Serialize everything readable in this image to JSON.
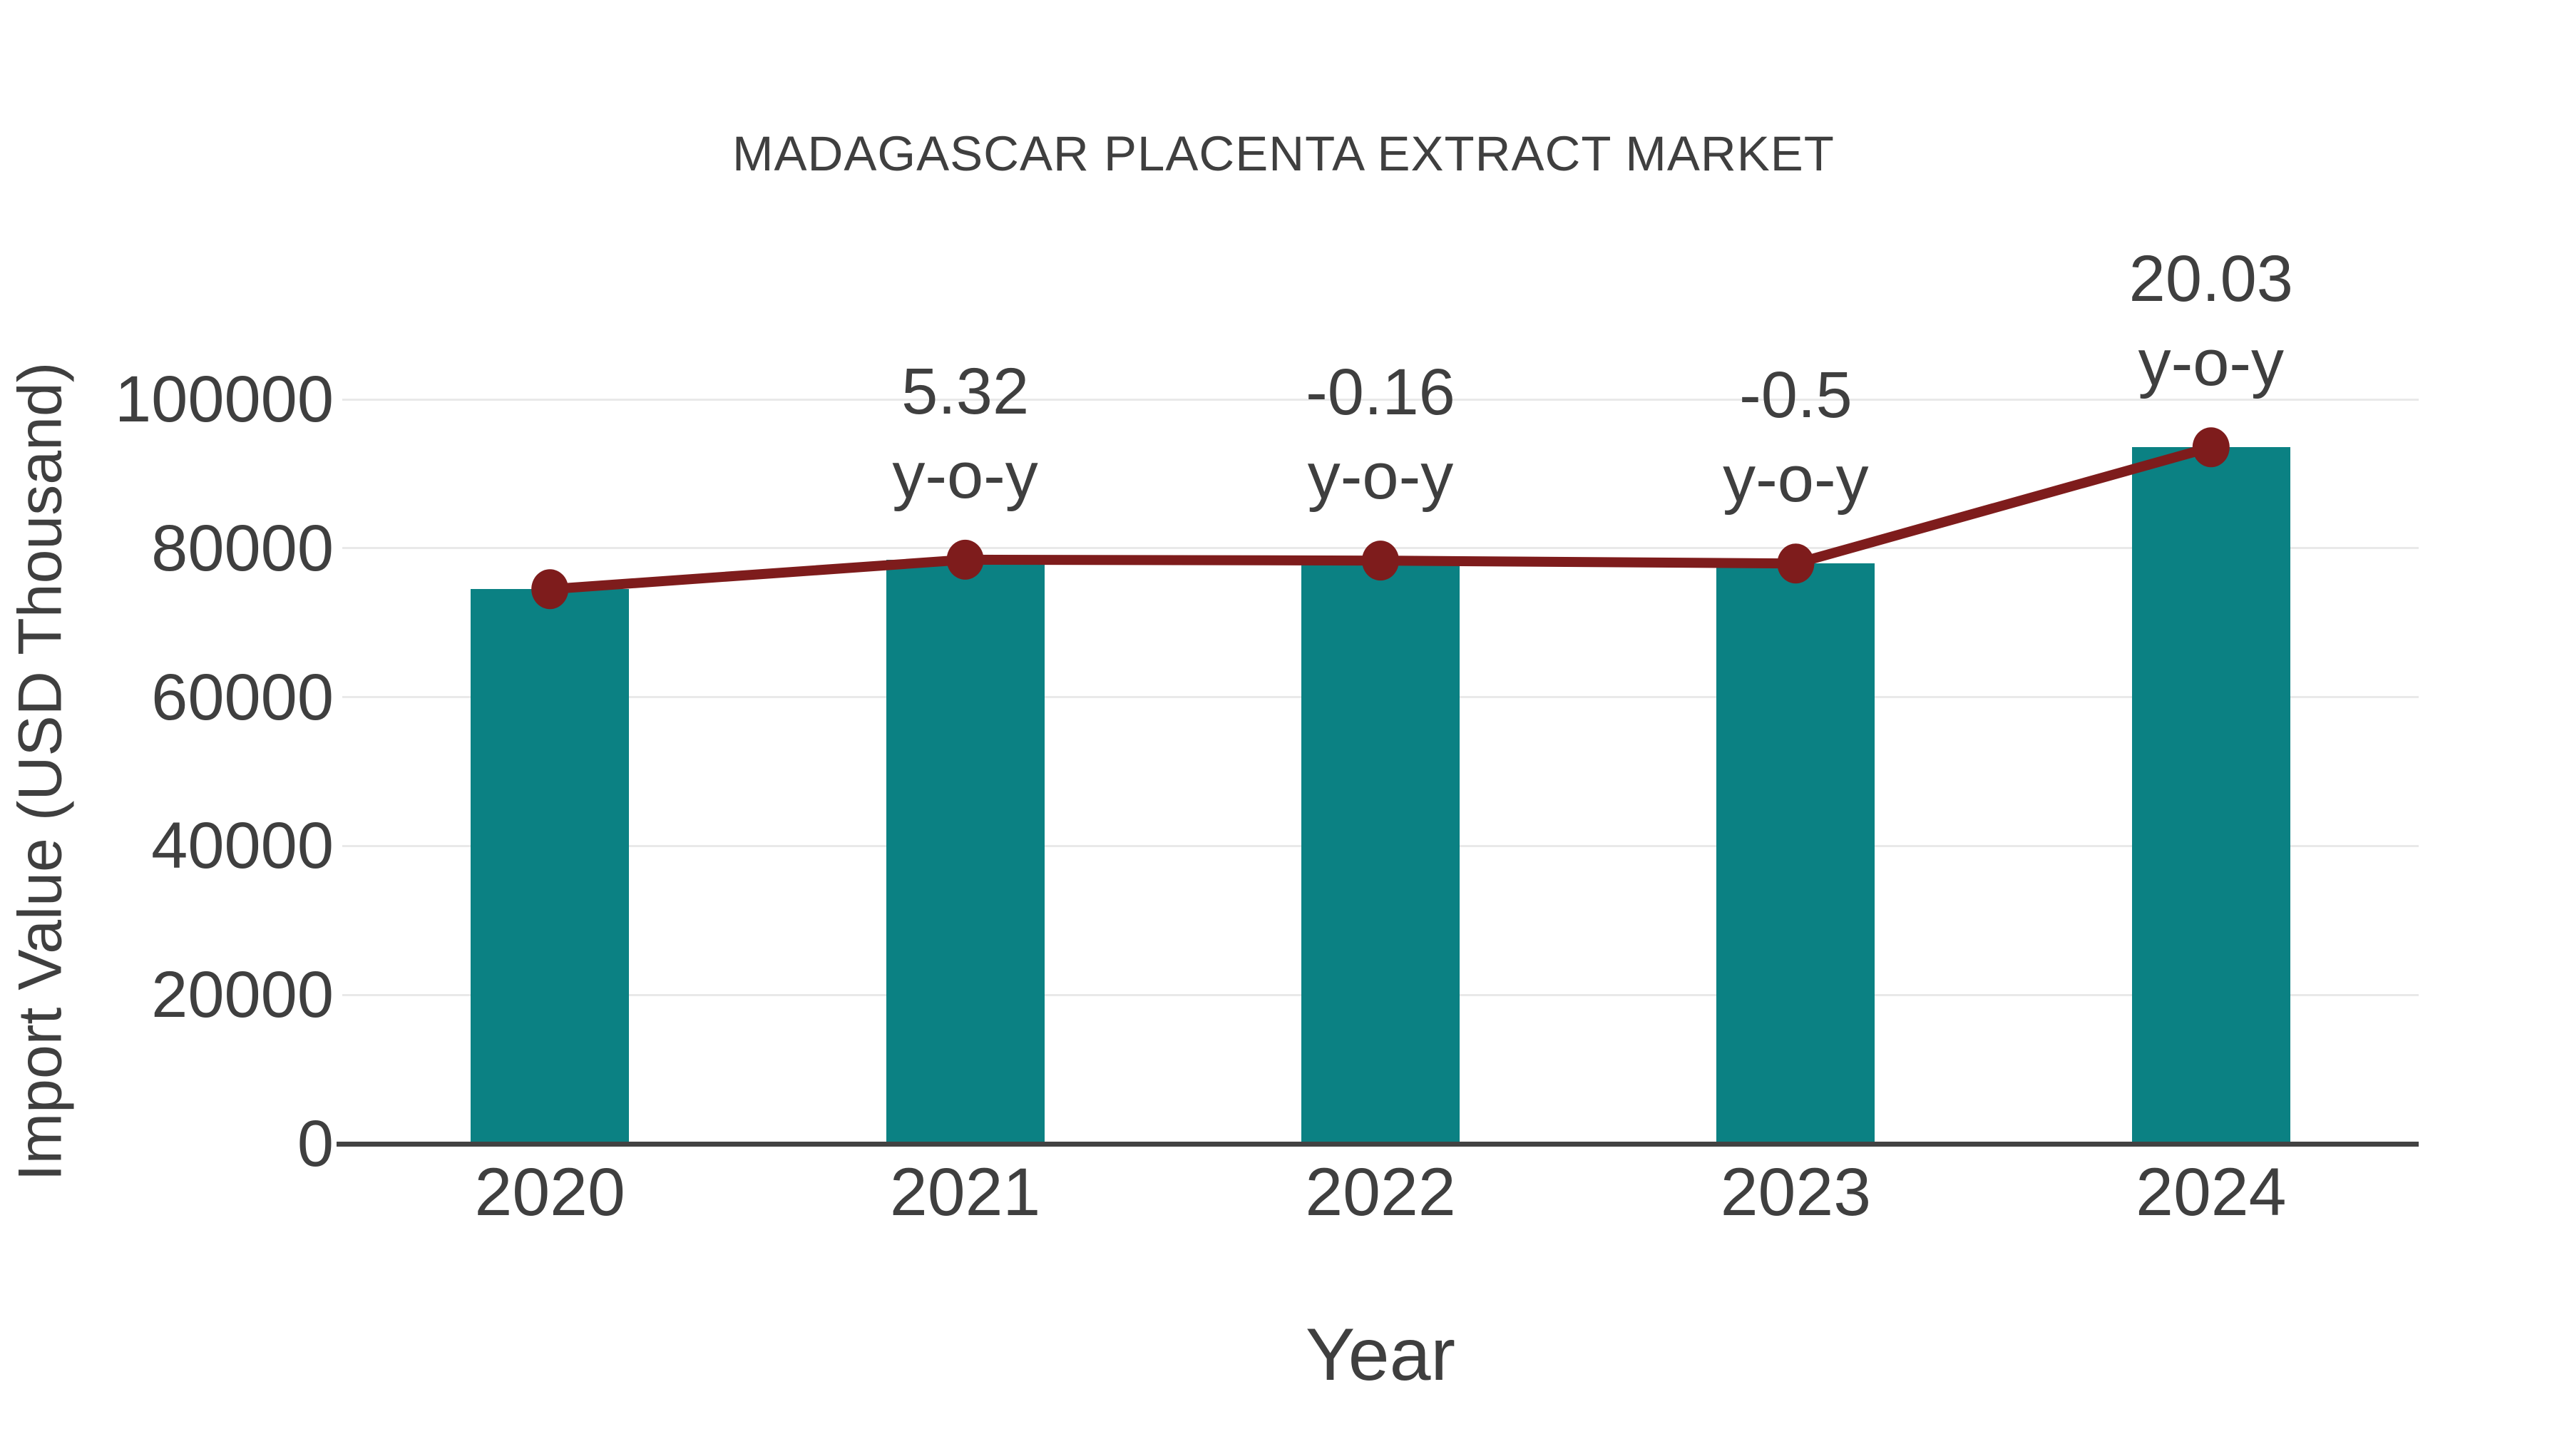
{
  "title": "MADAGASCAR PLACENTA EXTRACT MARKET",
  "chart_data": {
    "type": "bar",
    "subtype": "bar-with-line-overlay",
    "categories": [
      "2020",
      "2021",
      "2022",
      "2023",
      "2024"
    ],
    "series": [
      {
        "name": "Import Value",
        "type": "bar",
        "values": [
          74500,
          78463,
          78338,
          77946,
          93561
        ]
      },
      {
        "name": "Import Value trend line",
        "type": "line",
        "values": [
          74500,
          78463,
          78338,
          77946,
          93561
        ]
      }
    ],
    "annotations": [
      {
        "category": "2021",
        "line1": "5.32",
        "line2": "y-o-y"
      },
      {
        "category": "2022",
        "line1": "-0.16",
        "line2": "y-o-y"
      },
      {
        "category": "2023",
        "line1": "-0.5",
        "line2": "y-o-y"
      },
      {
        "category": "2024",
        "line1": "20.03",
        "line2": "y-o-y"
      }
    ],
    "title": "MADAGASCAR PLACENTA EXTRACT MARKET",
    "xlabel": "Year",
    "ylabel": "Import Value (USD Thousand)",
    "yticks": [
      0,
      20000,
      40000,
      60000,
      80000,
      100000
    ],
    "ylim": [
      0,
      100000
    ],
    "grid": "horizontal-only",
    "legend": "none",
    "colors": {
      "bar": "#0b8183",
      "line": "#7e1c1c",
      "marker": "#7e1c1c",
      "grid": "#e9e9e9",
      "axis": "#424242",
      "text": "#3f3f3f",
      "background": "#ffffff"
    }
  }
}
